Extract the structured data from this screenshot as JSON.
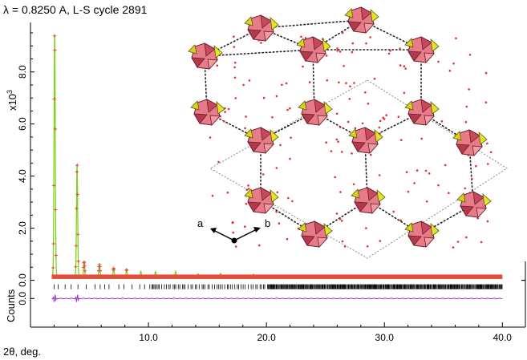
{
  "chart_data": {
    "type": "line",
    "title": "λ = 0.8250 A, L-S cycle 2891",
    "xlabel": "2θ, deg.",
    "ylabel": "Counts",
    "y_multiplier": "x10",
    "y_multiplier_exp": "3",
    "xlim": [
      0.0,
      41.0
    ],
    "ylim": [
      -1.8,
      9.9
    ],
    "x_ticks": [
      {
        "value": 10.0,
        "label": "10.0"
      },
      {
        "value": 20.0,
        "label": "20.0"
      },
      {
        "value": 30.0,
        "label": "30.0"
      },
      {
        "value": 40.0,
        "label": "40.0"
      }
    ],
    "y_ticks": [
      {
        "value": 0.0,
        "label": "0.0"
      },
      {
        "value": 2.0,
        "label": "2.0"
      },
      {
        "value": 4.0,
        "label": "4.0"
      },
      {
        "value": 6.0,
        "label": "6.0"
      },
      {
        "value": 8.0,
        "label": "8.0"
      }
    ],
    "y_ticks_lower": [
      {
        "value": -0.7,
        "label": "0.0"
      }
    ],
    "peaks": [
      {
        "x": 2.05,
        "y": 9.4
      },
      {
        "x": 3.95,
        "y": 4.35
      },
      {
        "x": 4.55,
        "y": 0.55
      },
      {
        "x": 5.85,
        "y": 0.45
      },
      {
        "x": 7.05,
        "y": 0.32
      },
      {
        "x": 8.15,
        "y": 0.28
      },
      {
        "x": 9.35,
        "y": 0.22
      },
      {
        "x": 10.6,
        "y": 0.18
      },
      {
        "x": 12.3,
        "y": 0.2
      },
      {
        "x": 14.2,
        "y": 0.14
      },
      {
        "x": 16.1,
        "y": 0.12
      },
      {
        "x": 18.9,
        "y": 0.12
      }
    ],
    "background_level": 0.1,
    "reflection_ticks_from": 2.0,
    "reflection_ticks_to": 40.0,
    "difference_level": -0.7,
    "series_colors": {
      "observed": "#e0503c",
      "calculated": "#7ed321",
      "background": "#e8483a",
      "difference": "#9b30d9",
      "reflections": "#000000"
    },
    "inset": {
      "axis_labels": [
        "a",
        "b"
      ]
    }
  }
}
